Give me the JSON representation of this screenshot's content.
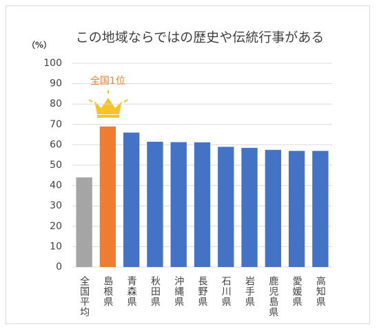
{
  "chart_data": {
    "type": "bar",
    "title": "この地域ならではの歴史や伝統行事がある",
    "y_label": "（%）",
    "annotation": "全国1位",
    "categories": [
      "全国平均",
      "島根県",
      "青森県",
      "秋田県",
      "沖縄県",
      "長野県",
      "石川県",
      "岩手県",
      "鹿児島県",
      "愛媛県",
      "高知県"
    ],
    "values": [
      44,
      69,
      66,
      61.5,
      61.3,
      61.2,
      59,
      58.5,
      57.5,
      57,
      57
    ],
    "colors": [
      "#a5a5a5",
      "#ed7d31",
      "#4472c4",
      "#4472c4",
      "#4472c4",
      "#4472c4",
      "#4472c4",
      "#4472c4",
      "#4472c4",
      "#4472c4",
      "#4472c4"
    ],
    "ylim": [
      0,
      100
    ],
    "yticks": [
      0,
      10,
      20,
      30,
      40,
      50,
      60,
      70,
      80,
      90,
      100
    ],
    "grid": true
  }
}
